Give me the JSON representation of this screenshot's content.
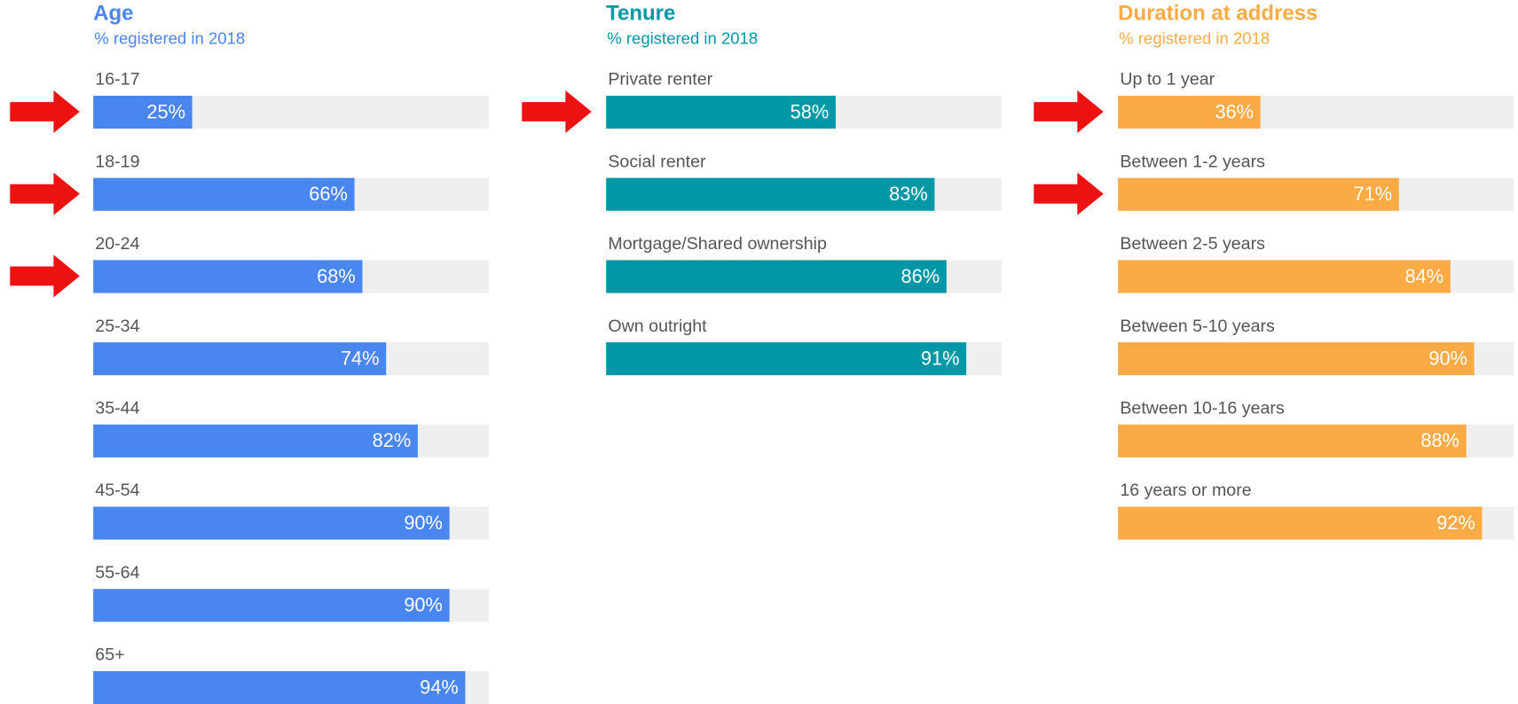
{
  "chart_data": [
    {
      "type": "bar",
      "title": "Age",
      "subtitle": "% registered in 2018",
      "color": "#4a86f0",
      "categories": [
        "16-17",
        "18-19",
        "20-24",
        "25-34",
        "35-44",
        "45-54",
        "55-64",
        "65+"
      ],
      "values": [
        25,
        66,
        68,
        74,
        82,
        90,
        90,
        94
      ],
      "value_labels": [
        "25%",
        "66%",
        "68%",
        "74%",
        "82%",
        "90%",
        "90%",
        "94%"
      ],
      "xlim": [
        0,
        100
      ]
    },
    {
      "type": "bar",
      "title": "Tenure",
      "subtitle": "% registered in 2018",
      "color": "#0098a6",
      "categories": [
        "Private renter",
        "Social renter",
        "Mortgage/Shared ownership",
        "Own outright"
      ],
      "values": [
        58,
        83,
        86,
        91
      ],
      "value_labels": [
        "58%",
        "83%",
        "86%",
        "91%"
      ],
      "xlim": [
        0,
        100
      ]
    },
    {
      "type": "bar",
      "title": "Duration at address",
      "subtitle": "% registered in 2018",
      "color": "#fbab45",
      "categories": [
        "Up to 1 year",
        "Between 1-2 years",
        "Between 2-5 years",
        "Between 5-10 years",
        "Between 10-16 years",
        "16 years or more"
      ],
      "values": [
        36,
        71,
        84,
        90,
        88,
        92
      ],
      "value_labels": [
        "36%",
        "71%",
        "84%",
        "90%",
        "88%",
        "92%"
      ],
      "xlim": [
        0,
        100
      ]
    }
  ]
}
